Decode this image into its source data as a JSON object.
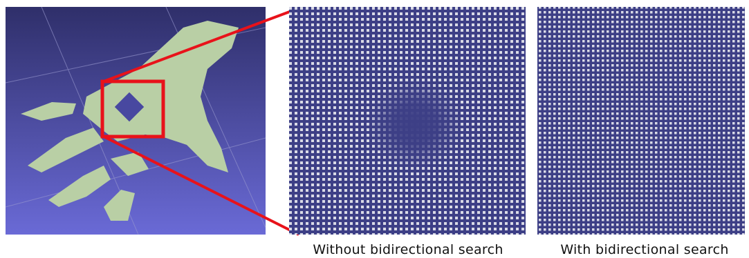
{
  "captions": [
    "Without bidirectional search",
    "With bidirectional search"
  ]
}
